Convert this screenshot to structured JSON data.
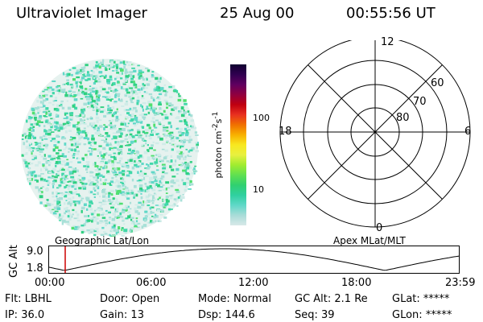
{
  "header": {
    "title": "Ultraviolet Imager",
    "date": "25 Aug 00",
    "time": "00:55:56 UT"
  },
  "colorbar": {
    "unit": "photon cm^-2 s^-1",
    "unit_text": "photon cm-2s-1",
    "ticks": [
      "100",
      "10"
    ],
    "colors": [
      "#d8e8e8",
      "#a8dcd8",
      "#60d8c8",
      "#30d0a0",
      "#30d070",
      "#60e050",
      "#a0ec30",
      "#e8f040",
      "#f8e820",
      "#f8b000",
      "#f07000",
      "#e83020",
      "#c00010",
      "#900040",
      "#600060",
      "#300050",
      "#100030"
    ]
  },
  "polar": {
    "labels": [
      "12",
      "6",
      "0",
      "18",
      "60",
      "70",
      "80"
    ]
  },
  "altitude_panel": {
    "left_label": "Geographic Lat/Lon",
    "right_label": "Apex MLat/MLT",
    "axis_title": "GC Alt",
    "y_ticks": [
      "9.0",
      "1.8"
    ],
    "x_ticks": [
      "00:00",
      "06:00",
      "12:00",
      "18:00",
      "23:59"
    ],
    "marker_color": "#cc0000"
  },
  "info": {
    "row1": [
      {
        "k": "Flt:",
        "v": "LBHL"
      },
      {
        "k": "Door:",
        "v": "Open"
      },
      {
        "k": "Mode:",
        "v": "Normal"
      },
      {
        "k": "GC Alt:",
        "v": "2.1 Re"
      },
      {
        "k": "GLat:",
        "v": "*****"
      }
    ],
    "row2": [
      {
        "k": "IP:",
        "v": "36.0"
      },
      {
        "k": "Gain:",
        "v": "13"
      },
      {
        "k": "Dsp:",
        "v": "144.6"
      },
      {
        "k": "Seq:",
        "v": "39"
      },
      {
        "k": "GLon:",
        "v": "*****"
      }
    ]
  }
}
